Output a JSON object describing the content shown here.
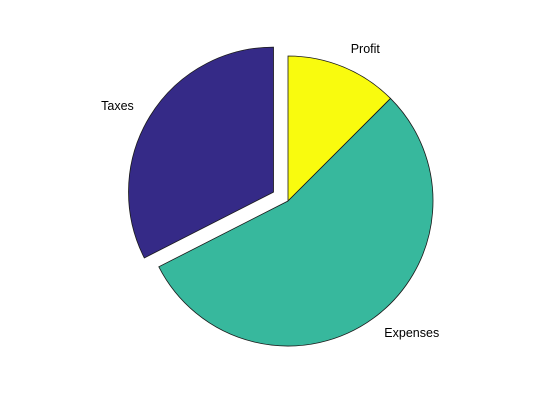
{
  "chart_data": {
    "type": "pie",
    "slices": [
      {
        "label": "Profit",
        "value": 12.5,
        "color": "#f9fb0e",
        "explode": false
      },
      {
        "label": "Expenses",
        "value": 55.0,
        "color": "#37b89d",
        "explode": false
      },
      {
        "label": "Taxes",
        "value": 32.5,
        "color": "#352a87",
        "explode": true
      }
    ],
    "start": "12 o'clock",
    "direction": "clockwise",
    "legend": "none"
  }
}
